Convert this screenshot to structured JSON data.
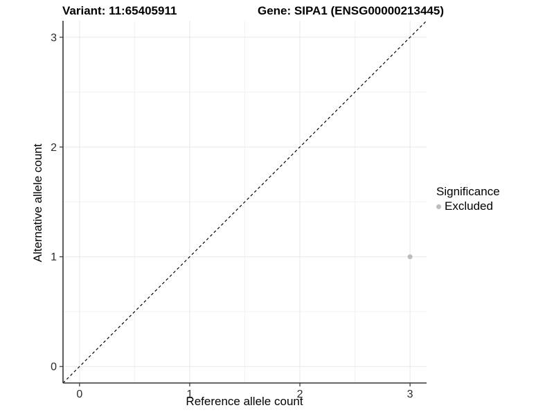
{
  "titles": {
    "variant": "Variant: 11:65405911",
    "gene": "Gene: SIPA1 (ENSG00000213445)"
  },
  "chart_data": {
    "type": "scatter",
    "title_left": "Variant: 11:65405911",
    "title_right": "Gene: SIPA1 (ENSG00000213445)",
    "xlabel": "Reference allele count",
    "ylabel": "Alternative allele count",
    "xlim": [
      -0.15,
      3.15
    ],
    "ylim": [
      -0.15,
      3.15
    ],
    "xticks": [
      0,
      1,
      2,
      3
    ],
    "yticks": [
      0,
      1,
      2,
      3
    ],
    "x_minor_ticks": [
      0.5,
      1.5,
      2.5
    ],
    "y_minor_ticks": [
      0.5,
      1.5,
      2.5
    ],
    "grid": "on",
    "reference_line": {
      "description": "identity line y = x",
      "style": "dashed",
      "from": [
        -0.15,
        -0.15
      ],
      "to": [
        3.15,
        3.15
      ],
      "color": "#000000"
    },
    "series": [
      {
        "name": "Excluded",
        "color": "#bdbdbd",
        "points": [
          {
            "x": 3,
            "y": 1
          }
        ]
      }
    ],
    "legend": {
      "title": "Significance",
      "position": "right",
      "entries": [
        {
          "label": "Excluded",
          "color": "#bdbdbd"
        }
      ]
    }
  },
  "colors": {
    "background": "#ffffff",
    "axis_line": "#333333",
    "tick_label": "#2b2b2b",
    "grid_major": "#e8e8e8",
    "grid_minor": "#f2f2f2",
    "point": "#bdbdbd"
  }
}
